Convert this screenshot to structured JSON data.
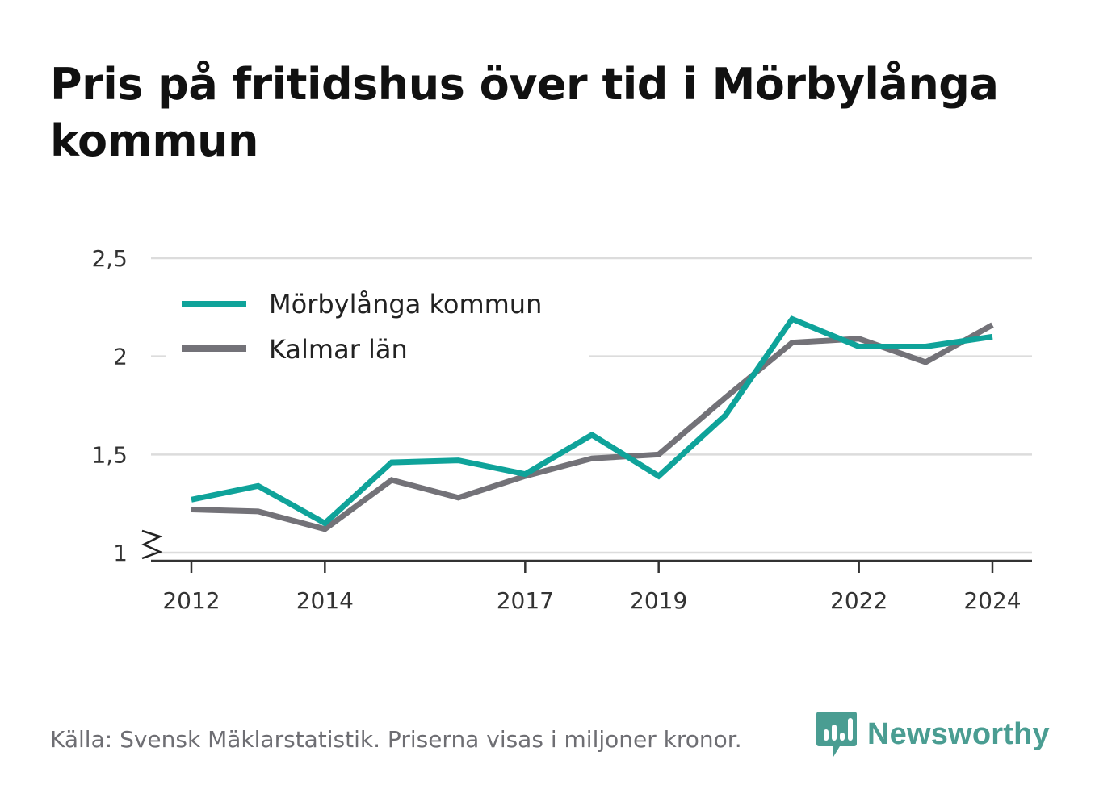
{
  "title": "Pris på fritidshus över tid i Mörbylånga kommun",
  "footer": "Källa: Svensk Mäklarstatistik. Priserna visas i miljoner kronor.",
  "brand": {
    "name": "Newsworthy",
    "icon": "newsworthy-logo-icon",
    "color": "#4a9d92"
  },
  "chart_data": {
    "type": "line",
    "x": [
      2012,
      2013,
      2014,
      2015,
      2016,
      2017,
      2018,
      2019,
      2020,
      2021,
      2022,
      2023,
      2024
    ],
    "x_tick_values": [
      2012,
      2014,
      2017,
      2019,
      2022,
      2024
    ],
    "x_tick_labels": [
      "2012",
      "2014",
      "2017",
      "2019",
      "2022",
      "2024"
    ],
    "y_tick_values": [
      1,
      1.5,
      2,
      2.5
    ],
    "y_tick_labels": [
      "1",
      "1,5",
      "2",
      "2,5"
    ],
    "ylim": [
      1,
      2.5
    ],
    "y_axis_break": true,
    "grid": true,
    "legend_position": "top-left",
    "series": [
      {
        "name": "Mörbylånga kommun",
        "color": "#0fa39a",
        "values": [
          1.27,
          1.34,
          1.15,
          1.46,
          1.47,
          1.4,
          1.6,
          1.39,
          1.7,
          2.19,
          2.05,
          2.05,
          2.1
        ]
      },
      {
        "name": "Kalmar län",
        "color": "#737278",
        "values": [
          1.22,
          1.21,
          1.12,
          1.37,
          1.28,
          1.39,
          1.48,
          1.5,
          1.79,
          2.07,
          2.09,
          1.97,
          2.16
        ]
      }
    ]
  }
}
